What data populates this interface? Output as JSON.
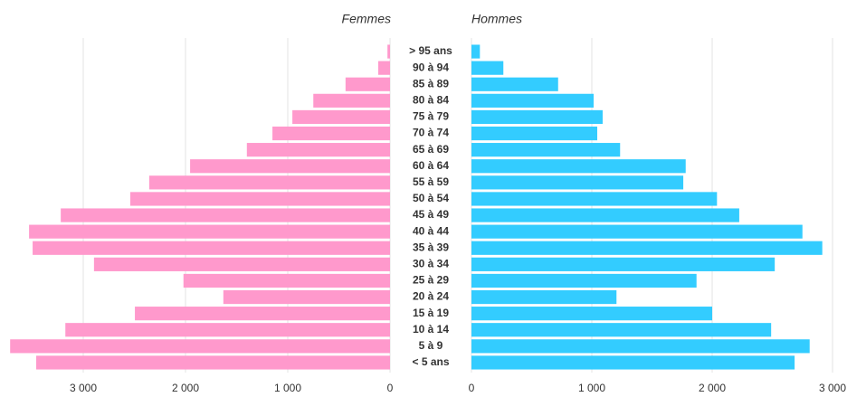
{
  "chart_data": {
    "type": "pyramid",
    "categories": [
      "> 95 ans",
      "90 à 94",
      "85 à 89",
      "80 à 84",
      "75 à 79",
      "70 à 74",
      "65 à 69",
      "60 à 64",
      "55 à 59",
      "50 à 54",
      "45 à 49",
      "40 à 44",
      "35 à 39",
      "30 à 34",
      "25 à 29",
      "20 à 24",
      "15 à 19",
      "10 à 14",
      "5 à 9",
      "< 5 ans"
    ],
    "series": [
      {
        "name": "Femmes",
        "color": "#ff99cc",
        "side": "left",
        "values": [
          25,
          115,
          435,
          750,
          955,
          1150,
          1400,
          1955,
          2355,
          2540,
          3220,
          3530,
          3495,
          2895,
          2020,
          1630,
          2495,
          3175,
          3715,
          3460
        ],
        "xlim": [
          0,
          3800
        ],
        "xticks": [
          0,
          {
            "value": 1000,
            "label": "1 000"
          },
          {
            "value": 2000,
            "label": "2 000"
          },
          {
            "value": 3000,
            "label": "3 000"
          }
        ]
      },
      {
        "name": "Hommes",
        "color": "#33ccff",
        "side": "right",
        "values": [
          70,
          265,
          720,
          1015,
          1090,
          1045,
          1235,
          1780,
          1760,
          2040,
          2225,
          2750,
          2915,
          2520,
          1870,
          1205,
          2000,
          2490,
          2810,
          2685
        ],
        "xlim": [
          0,
          3100
        ],
        "xticks": [
          0,
          {
            "value": 1000,
            "label": "1 000"
          },
          {
            "value": 2000,
            "label": "2 000"
          },
          {
            "value": 3000,
            "label": "3 000"
          }
        ]
      }
    ],
    "grid": true
  }
}
